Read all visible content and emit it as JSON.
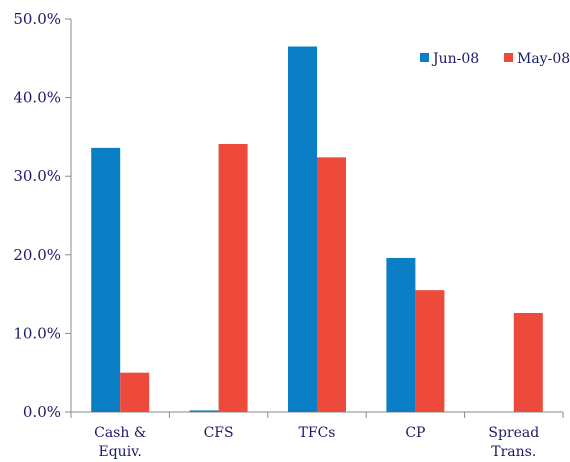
{
  "chart_data": {
    "type": "bar",
    "title": "",
    "xlabel": "",
    "ylabel": "",
    "categories": [
      [
        "Cash &",
        "Equiv."
      ],
      [
        "CFS"
      ],
      [
        "TFCs"
      ],
      [
        "CP"
      ],
      [
        "Spread",
        "Trans."
      ]
    ],
    "series": [
      {
        "name": "Jun-08",
        "color": "#0a7fc6",
        "values": [
          33.6,
          0.2,
          46.5,
          19.6,
          0.0
        ]
      },
      {
        "name": "May-08",
        "color": "#ee4a3c",
        "values": [
          5.0,
          34.1,
          32.4,
          15.5,
          12.6
        ]
      }
    ],
    "ylim": [
      0,
      50
    ],
    "y_ticks": [
      0,
      10,
      20,
      30,
      40,
      50
    ],
    "y_tick_labels": [
      "0.0%",
      "10.0%",
      "20.0%",
      "30.0%",
      "40.0%",
      "50.0%"
    ],
    "grid": false,
    "legend_position": "top-right"
  }
}
